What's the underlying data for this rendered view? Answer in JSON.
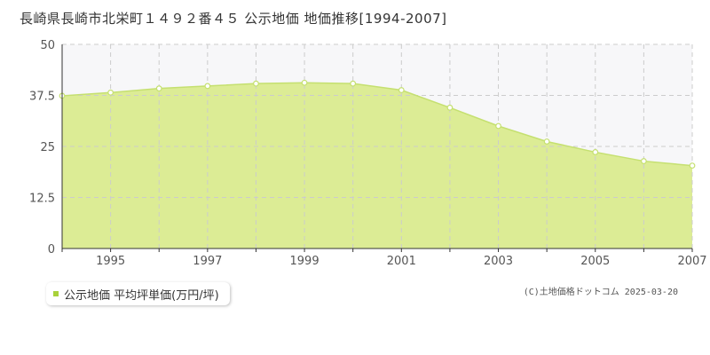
{
  "title": "長崎県長崎市北栄町１４９２番４５ 公示地価 地価推移[1994-2007]",
  "legend": {
    "label": "公示地価 平均坪単価(万円/坪)"
  },
  "copyright": "(C)土地価格ドットコム 2025-03-20",
  "colors": {
    "area_fill": "#dcec95",
    "line": "#c5e070",
    "plot_bg_upper": "#f7f7f9",
    "grid": "#cccccc",
    "legend_marker": "#a9d13b"
  },
  "chart_data": {
    "type": "area",
    "x": [
      1994,
      1995,
      1996,
      1997,
      1998,
      1999,
      2000,
      2001,
      2002,
      2003,
      2004,
      2005,
      2006,
      2007
    ],
    "series": [
      {
        "name": "公示地価 平均坪単価(万円/坪)",
        "values": [
          37.4,
          38.2,
          39.2,
          39.8,
          40.4,
          40.6,
          40.4,
          38.8,
          34.5,
          30.0,
          26.2,
          23.6,
          21.4,
          20.3
        ]
      }
    ],
    "x_ticks": [
      "1995",
      "1997",
      "1999",
      "2001",
      "2003",
      "2005",
      "2007"
    ],
    "y_ticks": [
      "0",
      "12.5",
      "25",
      "37.5",
      "50"
    ],
    "xlim": [
      1994,
      2007
    ],
    "ylim": [
      0,
      50
    ],
    "grid": true
  }
}
